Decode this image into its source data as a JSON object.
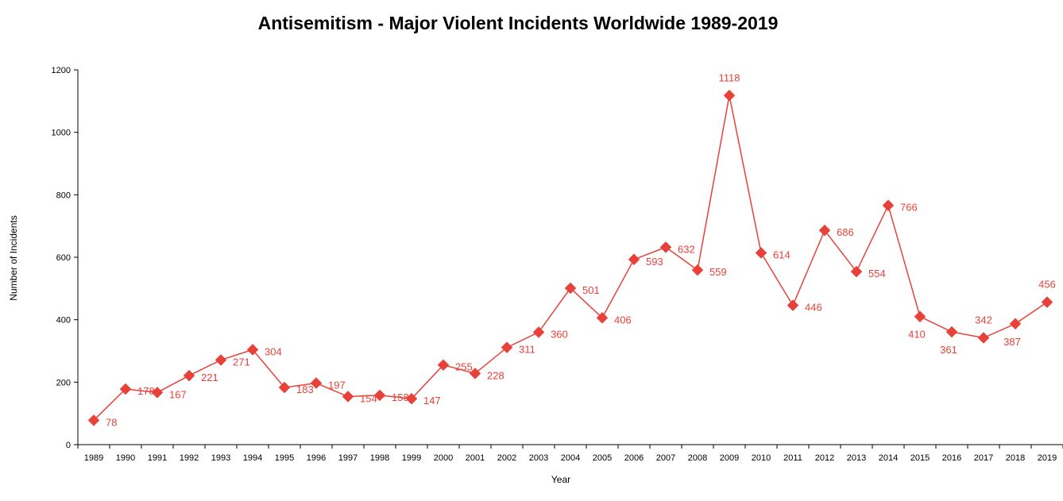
{
  "chart_data": {
    "type": "line",
    "title": "Antisemitism -  Major Violent Incidents Worldwide 1989-2019",
    "xlabel": "Year",
    "ylabel": "Number of Incidents",
    "ylim": [
      0,
      1200
    ],
    "yticks": [
      "0",
      "200",
      "400",
      "600",
      "800",
      "1000",
      "1200"
    ],
    "grid": false,
    "legend": "none",
    "color": "#e8413a",
    "marker": "diamond",
    "categories": [
      "1989",
      "1990",
      "1991",
      "1992",
      "1993",
      "1994",
      "1995",
      "1996",
      "1997",
      "1998",
      "1999",
      "2000",
      "2001",
      "2002",
      "2003",
      "2004",
      "2005",
      "2006",
      "2007",
      "2008",
      "2009",
      "2010",
      "2011",
      "2012",
      "2013",
      "2014",
      "2015",
      "2016",
      "2017",
      "2018",
      "2019"
    ],
    "values": [
      78,
      178,
      167,
      221,
      271,
      304,
      183,
      197,
      154,
      158,
      147,
      255,
      228,
      311,
      360,
      501,
      406,
      593,
      632,
      559,
      1118,
      614,
      446,
      686,
      554,
      766,
      410,
      361,
      342,
      387,
      456
    ],
    "labels": [
      "78",
      "178",
      "167",
      "221",
      "271",
      "304",
      "183",
      "197",
      "154",
      "158",
      "147",
      "255",
      "228",
      "311",
      "360",
      "501",
      "406",
      "593",
      "632",
      "559",
      "1118",
      "614",
      "446",
      "686",
      "554",
      "766",
      "410",
      "361",
      "342",
      "387",
      "456"
    ],
    "label_positions": [
      "right",
      "right",
      "right",
      "right",
      "right",
      "right",
      "right",
      "right",
      "right",
      "right",
      "right",
      "right",
      "right",
      "right",
      "right",
      "right",
      "right",
      "right",
      "right",
      "right",
      "above",
      "right",
      "right",
      "right",
      "right",
      "right",
      "below-left",
      "below-left",
      "above",
      "below-left",
      "above"
    ]
  }
}
